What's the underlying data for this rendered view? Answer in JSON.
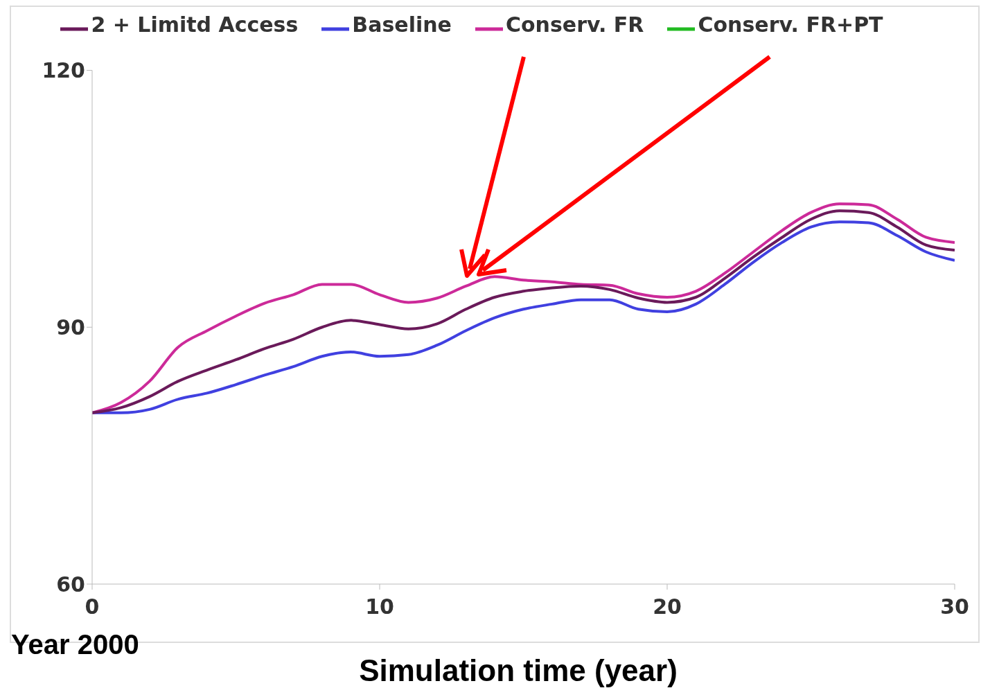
{
  "chart_data": {
    "type": "line",
    "xlabel": "Simulation time (year)",
    "annotations": [
      "Year 2000"
    ],
    "x": [
      0,
      1,
      2,
      3,
      4,
      5,
      6,
      7,
      8,
      9,
      10,
      11,
      12,
      13,
      14,
      15,
      16,
      17,
      18,
      19,
      20,
      21,
      22,
      23,
      24,
      25,
      26,
      27,
      28,
      29,
      30
    ],
    "xlim": [
      0,
      30
    ],
    "xticks": [
      0,
      10,
      20,
      30
    ],
    "ylim": [
      60,
      120
    ],
    "yticks": [
      60,
      90,
      120
    ],
    "grid": false,
    "legend": "top",
    "marker": "none",
    "line_style": "solid",
    "series": [
      {
        "name": "Baseline",
        "color": "#4040e0",
        "values": [
          80,
          80,
          80.4,
          81.6,
          82.3,
          83.3,
          84.4,
          85.4,
          86.6,
          87.1,
          86.6,
          86.8,
          87.9,
          89.6,
          91.1,
          92.1,
          92.7,
          93.2,
          93.2,
          92.1,
          91.8,
          92.7,
          95,
          97.6,
          99.9,
          101.7,
          102.3,
          102.2,
          100.7,
          98.8,
          97.8
        ]
      },
      {
        "name": "Conserv.  FR",
        "color": "#cc2a99",
        "values": [
          80,
          81.2,
          83.7,
          87.7,
          89.6,
          91.3,
          92.8,
          93.8,
          95,
          95,
          93.8,
          92.9,
          93.4,
          94.8,
          95.9,
          95.5,
          95.3,
          95,
          94.9,
          93.9,
          93.5,
          94.2,
          96.3,
          98.8,
          101.3,
          103.4,
          104.4,
          104.3,
          102.6,
          100.5,
          99.9
        ]
      },
      {
        "name": "Conserv.  FR+PT",
        "color": "#22bb22",
        "values": [
          null,
          null,
          null,
          null,
          null,
          null,
          null,
          null,
          null,
          null,
          null,
          null,
          null,
          null,
          null,
          null,
          null,
          null,
          null,
          null,
          null,
          null,
          null,
          null,
          null,
          null,
          null,
          null,
          null,
          null,
          null
        ]
      },
      {
        "name": "2 + Limitd Access",
        "color": "#6a1a5a",
        "values": [
          80,
          80.6,
          81.9,
          83.7,
          85,
          86.2,
          87.5,
          88.6,
          90,
          90.8,
          90.3,
          89.8,
          90.4,
          92.1,
          93.5,
          94.2,
          94.6,
          94.8,
          94.4,
          93.4,
          92.9,
          93.5,
          95.7,
          98.2,
          100.5,
          102.6,
          103.6,
          103.4,
          101.7,
          99.6,
          99
        ]
      }
    ]
  }
}
